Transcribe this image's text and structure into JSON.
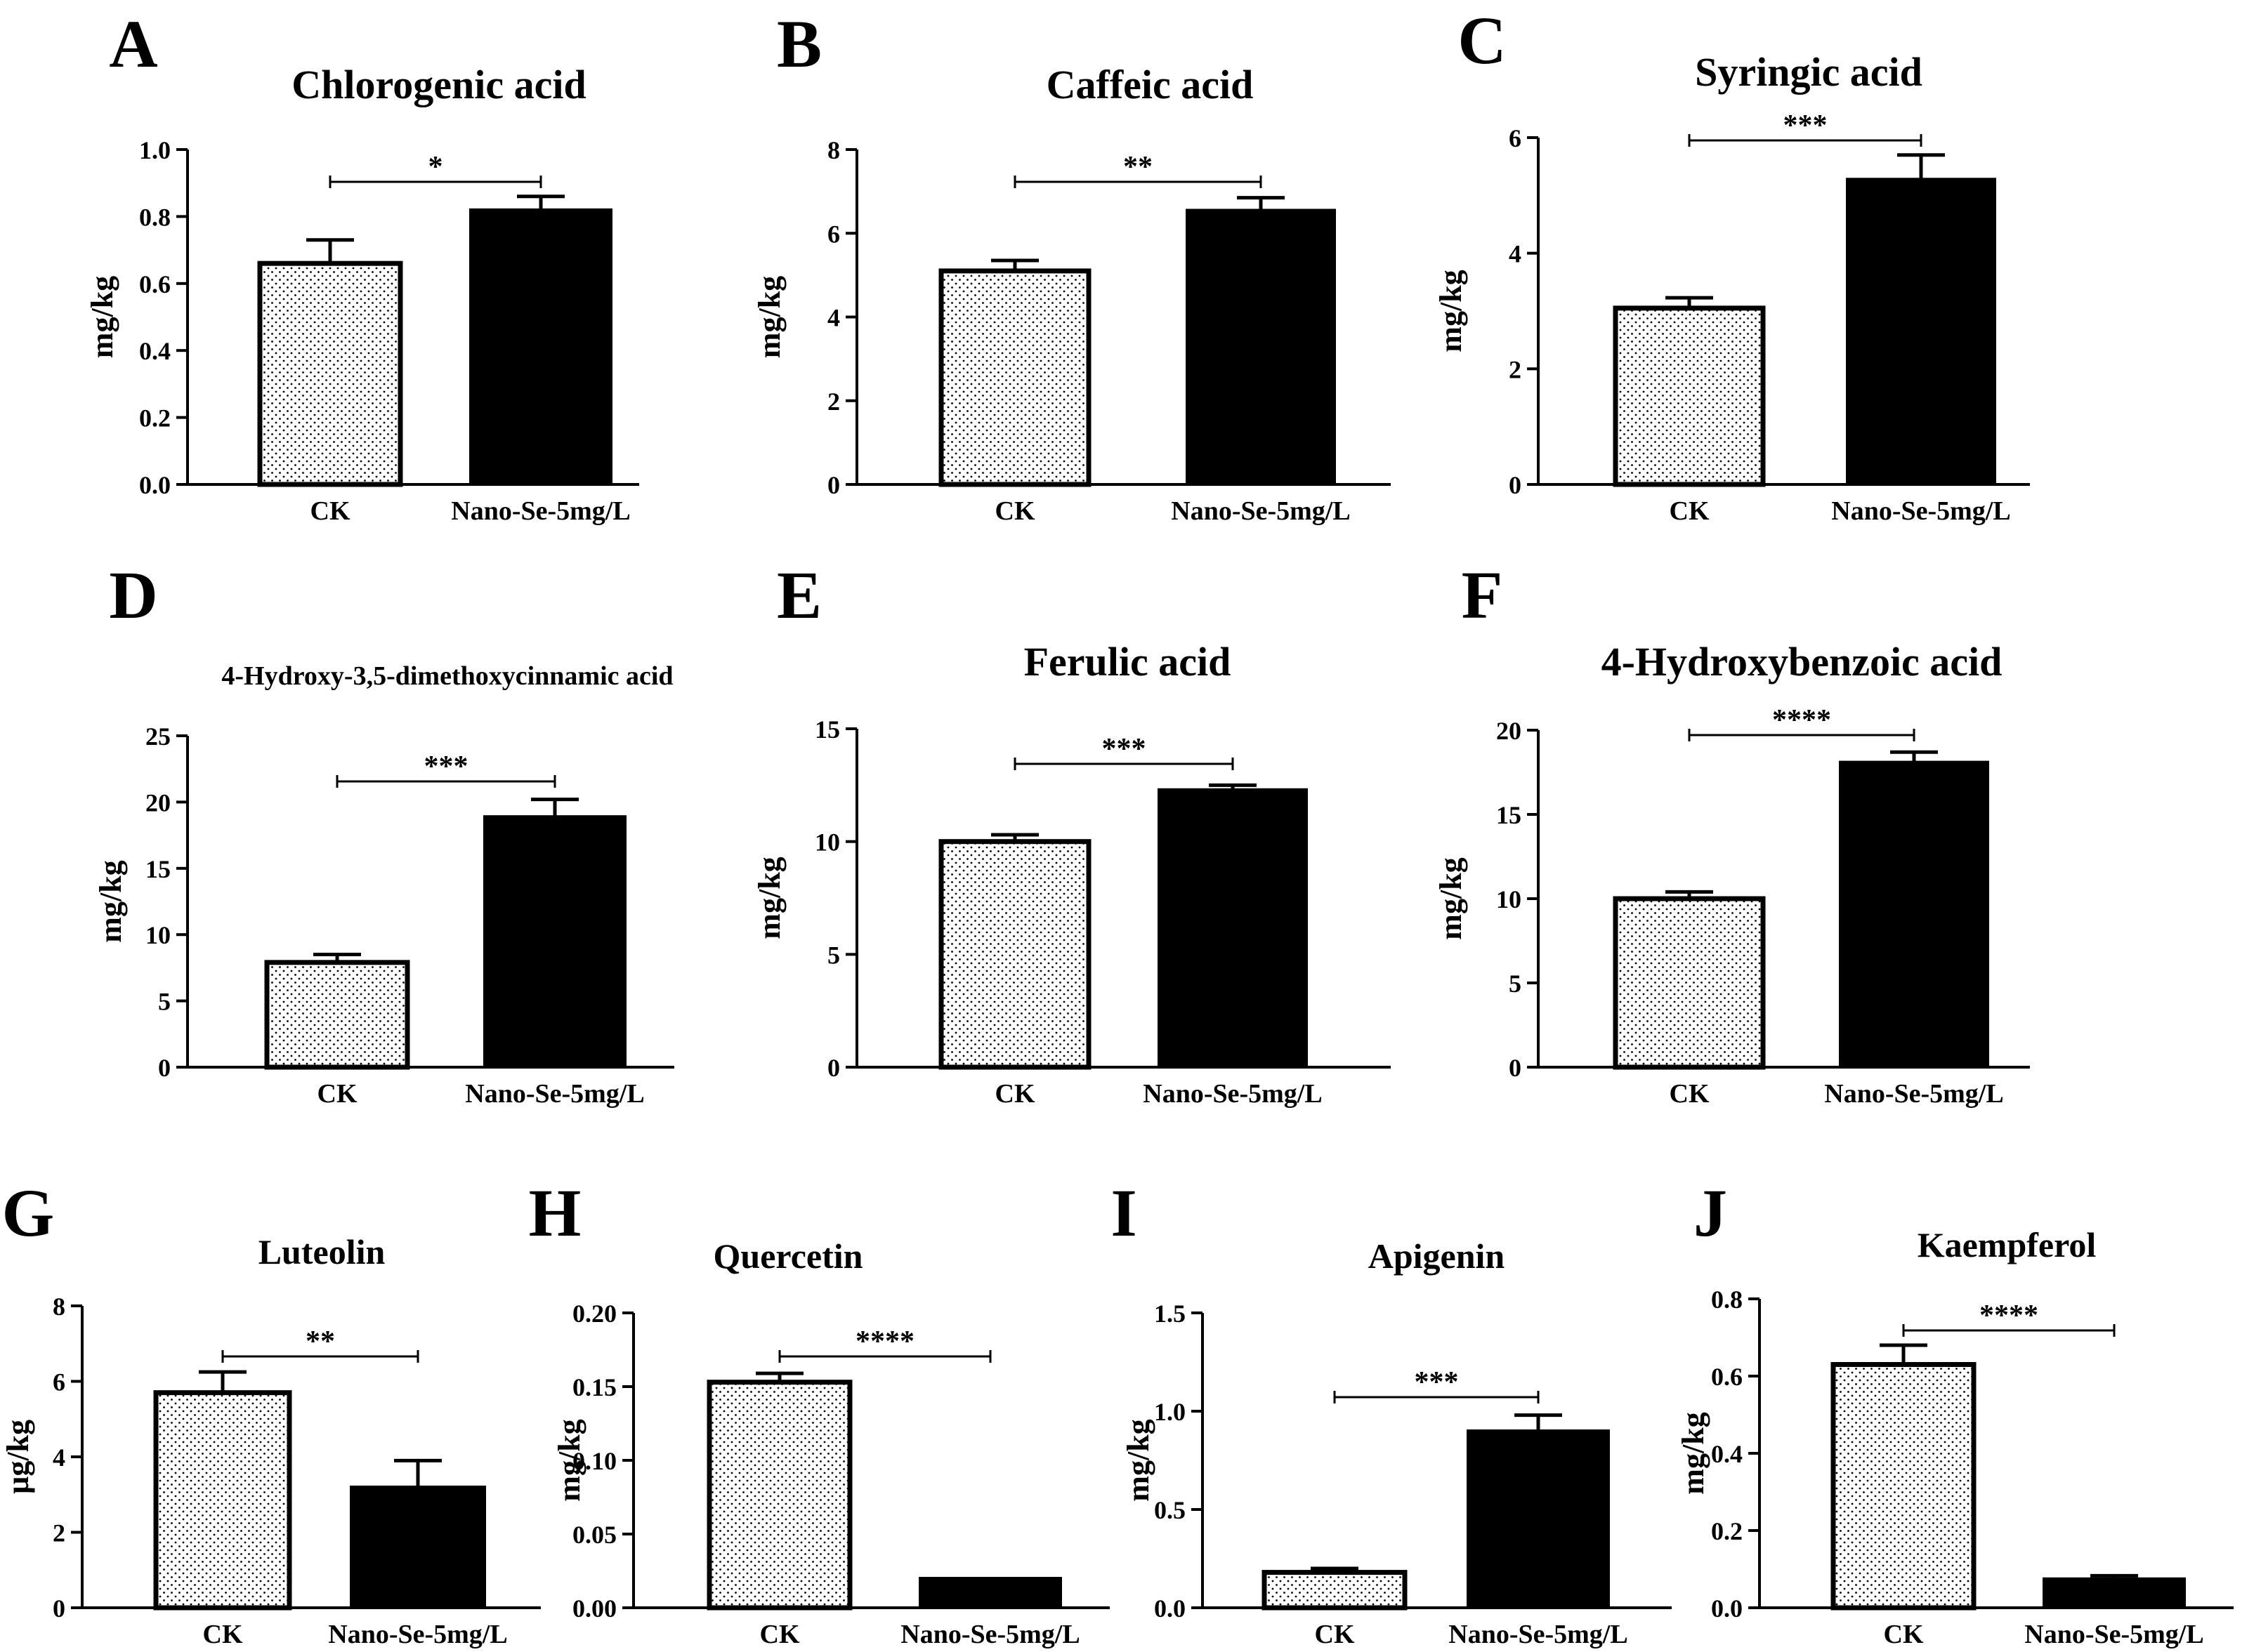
{
  "figure": {
    "series_names": [
      "CK",
      "Nano-Se-5mg/L"
    ],
    "colors": {
      "ck_fill": "#ffffff",
      "ck_dots": "#000000",
      "nano_fill": "#000000",
      "axis": "#000000"
    }
  },
  "chart_data": [
    {
      "panel": "A",
      "type": "bar",
      "title": "Chlorogenic acid",
      "ylabel": "mg/kg",
      "categories": [
        "CK",
        "Nano-Se-5mg/L"
      ],
      "values": [
        0.66,
        0.82
      ],
      "errors": [
        0.07,
        0.04
      ],
      "ylim": [
        0,
        1.0
      ],
      "yticks": [
        "0.0",
        "0.2",
        "0.4",
        "0.6",
        "0.8",
        "1.0"
      ],
      "significance": "*"
    },
    {
      "panel": "B",
      "type": "bar",
      "title": "Caffeic acid",
      "ylabel": "mg/kg",
      "categories": [
        "CK",
        "Nano-Se-5mg/L"
      ],
      "values": [
        5.1,
        6.55
      ],
      "errors": [
        0.25,
        0.3
      ],
      "ylim": [
        0,
        8
      ],
      "yticks": [
        "0",
        "2",
        "4",
        "6",
        "8"
      ],
      "significance": "**"
    },
    {
      "panel": "C",
      "type": "bar",
      "title": "Syringic acid",
      "ylabel": "mg/kg",
      "categories": [
        "CK",
        "Nano-Se-5mg/L"
      ],
      "values": [
        3.05,
        5.28
      ],
      "errors": [
        0.18,
        0.42
      ],
      "ylim": [
        0,
        6
      ],
      "yticks": [
        "0",
        "2",
        "4",
        "6"
      ],
      "significance": "***"
    },
    {
      "panel": "D",
      "type": "bar",
      "title": "4-Hydroxy-3,5-dimethoxycinnamic acid",
      "ylabel": "mg/kg",
      "categories": [
        "CK",
        "Nano-Se-5mg/L"
      ],
      "values": [
        7.9,
        18.9
      ],
      "errors": [
        0.6,
        1.3
      ],
      "ylim": [
        0,
        25
      ],
      "yticks": [
        "0",
        "5",
        "10",
        "15",
        "20",
        "25"
      ],
      "significance": "***"
    },
    {
      "panel": "E",
      "type": "bar",
      "title": "Ferulic acid",
      "ylabel": "mg/kg",
      "categories": [
        "CK",
        "Nano-Se-5mg/L"
      ],
      "values": [
        10.0,
        12.3
      ],
      "errors": [
        0.3,
        0.2
      ],
      "ylim": [
        0,
        15
      ],
      "yticks": [
        "0",
        "5",
        "10",
        "15"
      ],
      "significance": "***"
    },
    {
      "panel": "F",
      "type": "bar",
      "title": "4-Hydroxybenzoic acid",
      "ylabel": "mg/kg",
      "categories": [
        "CK",
        "Nano-Se-5mg/L"
      ],
      "values": [
        10.0,
        18.1
      ],
      "errors": [
        0.4,
        0.6
      ],
      "ylim": [
        0,
        20
      ],
      "yticks": [
        "0",
        "5",
        "10",
        "15",
        "20"
      ],
      "significance": "****"
    },
    {
      "panel": "G",
      "type": "bar",
      "title": "Luteolin",
      "ylabel": "µg/kg",
      "categories": [
        "CK",
        "Nano-Se-5mg/L"
      ],
      "values": [
        5.7,
        3.2
      ],
      "errors": [
        0.55,
        0.7
      ],
      "ylim": [
        0,
        8
      ],
      "yticks": [
        "0",
        "2",
        "4",
        "6",
        "8"
      ],
      "significance": "**"
    },
    {
      "panel": "H",
      "type": "bar",
      "title": "Quercetin",
      "ylabel": "mg/kg",
      "categories": [
        "CK",
        "Nano-Se-5mg/L"
      ],
      "values": [
        0.153,
        0.02
      ],
      "errors": [
        0.006,
        0.0
      ],
      "ylim": [
        0,
        0.2
      ],
      "yticks": [
        "0.00",
        "0.05",
        "0.10",
        "0.15",
        "0.20"
      ],
      "significance": "****"
    },
    {
      "panel": "I",
      "type": "bar",
      "title": "Apigenin",
      "ylabel": "mg/kg",
      "categories": [
        "CK",
        "Nano-Se-5mg/L"
      ],
      "values": [
        0.18,
        0.9
      ],
      "errors": [
        0.02,
        0.08
      ],
      "ylim": [
        0,
        1.5
      ],
      "yticks": [
        "0.0",
        "0.5",
        "1.0",
        "1.5"
      ],
      "significance": "***"
    },
    {
      "panel": "J",
      "type": "bar",
      "title": "Kaempferol",
      "ylabel": "mg/kg",
      "categories": [
        "CK",
        "Nano-Se-5mg/L"
      ],
      "values": [
        0.63,
        0.075
      ],
      "errors": [
        0.05,
        0.008
      ],
      "ylim": [
        0,
        0.8
      ],
      "yticks": [
        "0.0",
        "0.2",
        "0.4",
        "0.6",
        "0.8"
      ],
      "significance": "****"
    }
  ]
}
